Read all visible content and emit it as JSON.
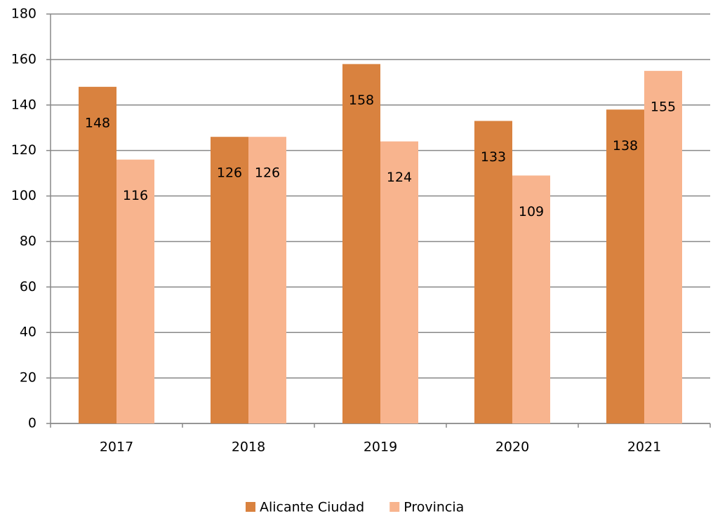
{
  "chart_data": {
    "type": "bar",
    "categories": [
      "2017",
      "2018",
      "2019",
      "2020",
      "2021"
    ],
    "series": [
      {
        "name": "Alicante Ciudad",
        "color": "#d9823f",
        "values": [
          148,
          126,
          158,
          133,
          138
        ]
      },
      {
        "name": "Provincia",
        "color": "#f8b48e",
        "values": [
          116,
          126,
          124,
          109,
          155
        ]
      }
    ],
    "ylim": [
      0,
      180
    ],
    "yticks": [
      0,
      20,
      40,
      60,
      80,
      100,
      120,
      140,
      160,
      180
    ],
    "grid": true,
    "legend": "bottom",
    "data_labels": true
  }
}
